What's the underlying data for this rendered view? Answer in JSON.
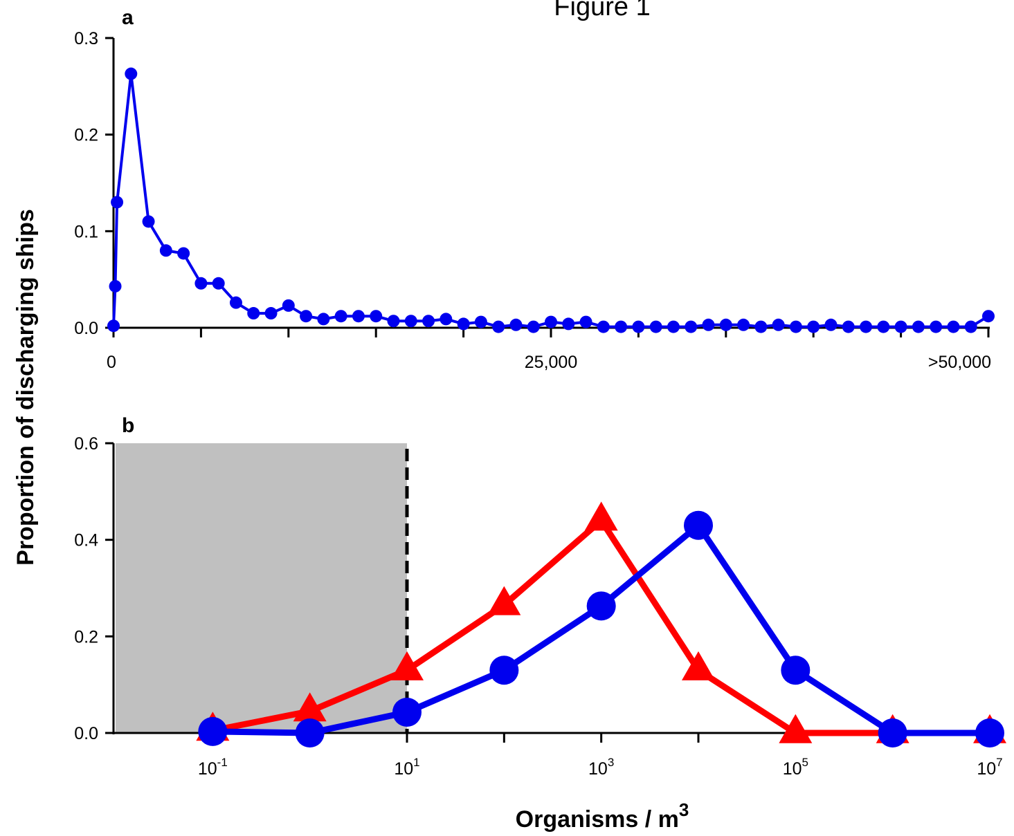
{
  "figure": {
    "title": "Figure 1",
    "ylabel": "Proportion of discharging ships",
    "colors": {
      "blue": "#0000ee",
      "red": "#ff0000",
      "shade": "#c0c0c0",
      "axis": "#000000"
    }
  },
  "chart_data": [
    {
      "panel": "a",
      "type": "line",
      "xlabel": "",
      "ylabel": "Proportion of discharging ships",
      "ylim": [
        0,
        0.3
      ],
      "xlim": [
        0,
        50000
      ],
      "y_ticks": [
        "0.0",
        "0.1",
        "0.2",
        "0.3"
      ],
      "x_tick_labels": [
        "0",
        "25,000",
        ">50,000"
      ],
      "series": [
        {
          "color": "#0000ee",
          "marker": "circle",
          "x": [
            0,
            100,
            200,
            1000,
            2000,
            3000,
            4000,
            5000,
            6000,
            7000,
            8000,
            9000,
            10000,
            11000,
            12000,
            13000,
            14000,
            15000,
            16000,
            17000,
            18000,
            19000,
            20000,
            21000,
            22000,
            23000,
            24000,
            25000,
            26000,
            27000,
            28000,
            29000,
            30000,
            31000,
            32000,
            33000,
            34000,
            35000,
            36000,
            37000,
            38000,
            39000,
            40000,
            41000,
            42000,
            43000,
            44000,
            45000,
            46000,
            47000,
            48000,
            49000,
            50000
          ],
          "y": [
            0.002,
            0.043,
            0.13,
            0.263,
            0.11,
            0.08,
            0.077,
            0.046,
            0.046,
            0.026,
            0.015,
            0.015,
            0.023,
            0.012,
            0.009,
            0.012,
            0.012,
            0.012,
            0.007,
            0.007,
            0.007,
            0.009,
            0.004,
            0.006,
            0.001,
            0.003,
            0.001,
            0.006,
            0.004,
            0.006,
            0.001,
            0.001,
            0.001,
            0.001,
            0.001,
            0.001,
            0.003,
            0.003,
            0.003,
            0.001,
            0.003,
            0.001,
            0.001,
            0.003,
            0.001,
            0.001,
            0.001,
            0.001,
            0.001,
            0.001,
            0.001,
            0.001,
            0.012
          ]
        }
      ]
    },
    {
      "panel": "b",
      "type": "line",
      "xlabel": "Organisms / m",
      "xlabel_superscript": "3",
      "ylabel": "Proportion of discharging ships",
      "xscale": "log",
      "xlim_log10": [
        -2,
        7
      ],
      "ylim": [
        0,
        0.6
      ],
      "y_ticks": [
        "0.0",
        "0.2",
        "0.4",
        "0.6"
      ],
      "x_tick_labels": [
        {
          "base": "10",
          "exp": "-1",
          "log10": -1
        },
        {
          "base": "10",
          "exp": "1",
          "log10": 1
        },
        {
          "base": "10",
          "exp": "3",
          "log10": 3
        },
        {
          "base": "10",
          "exp": "5",
          "log10": 5
        },
        {
          "base": "10",
          "exp": "7",
          "log10": 7
        }
      ],
      "shaded_region_log10": [
        -2,
        1
      ],
      "threshold_line_log10": 1,
      "series": [
        {
          "color": "#ff0000",
          "marker": "triangle",
          "x_log10": [
            -1,
            0,
            1,
            2,
            3,
            4,
            5,
            6,
            7
          ],
          "y": [
            0.005,
            0.045,
            0.13,
            0.265,
            0.44,
            0.13,
            0.0,
            0.0,
            0.0
          ]
        },
        {
          "color": "#0000ee",
          "marker": "circle",
          "x_log10": [
            -1,
            0,
            1,
            2,
            3,
            4,
            5,
            6,
            7
          ],
          "y": [
            0.003,
            0.0,
            0.043,
            0.13,
            0.263,
            0.43,
            0.13,
            0.0,
            0.0
          ]
        }
      ]
    }
  ]
}
